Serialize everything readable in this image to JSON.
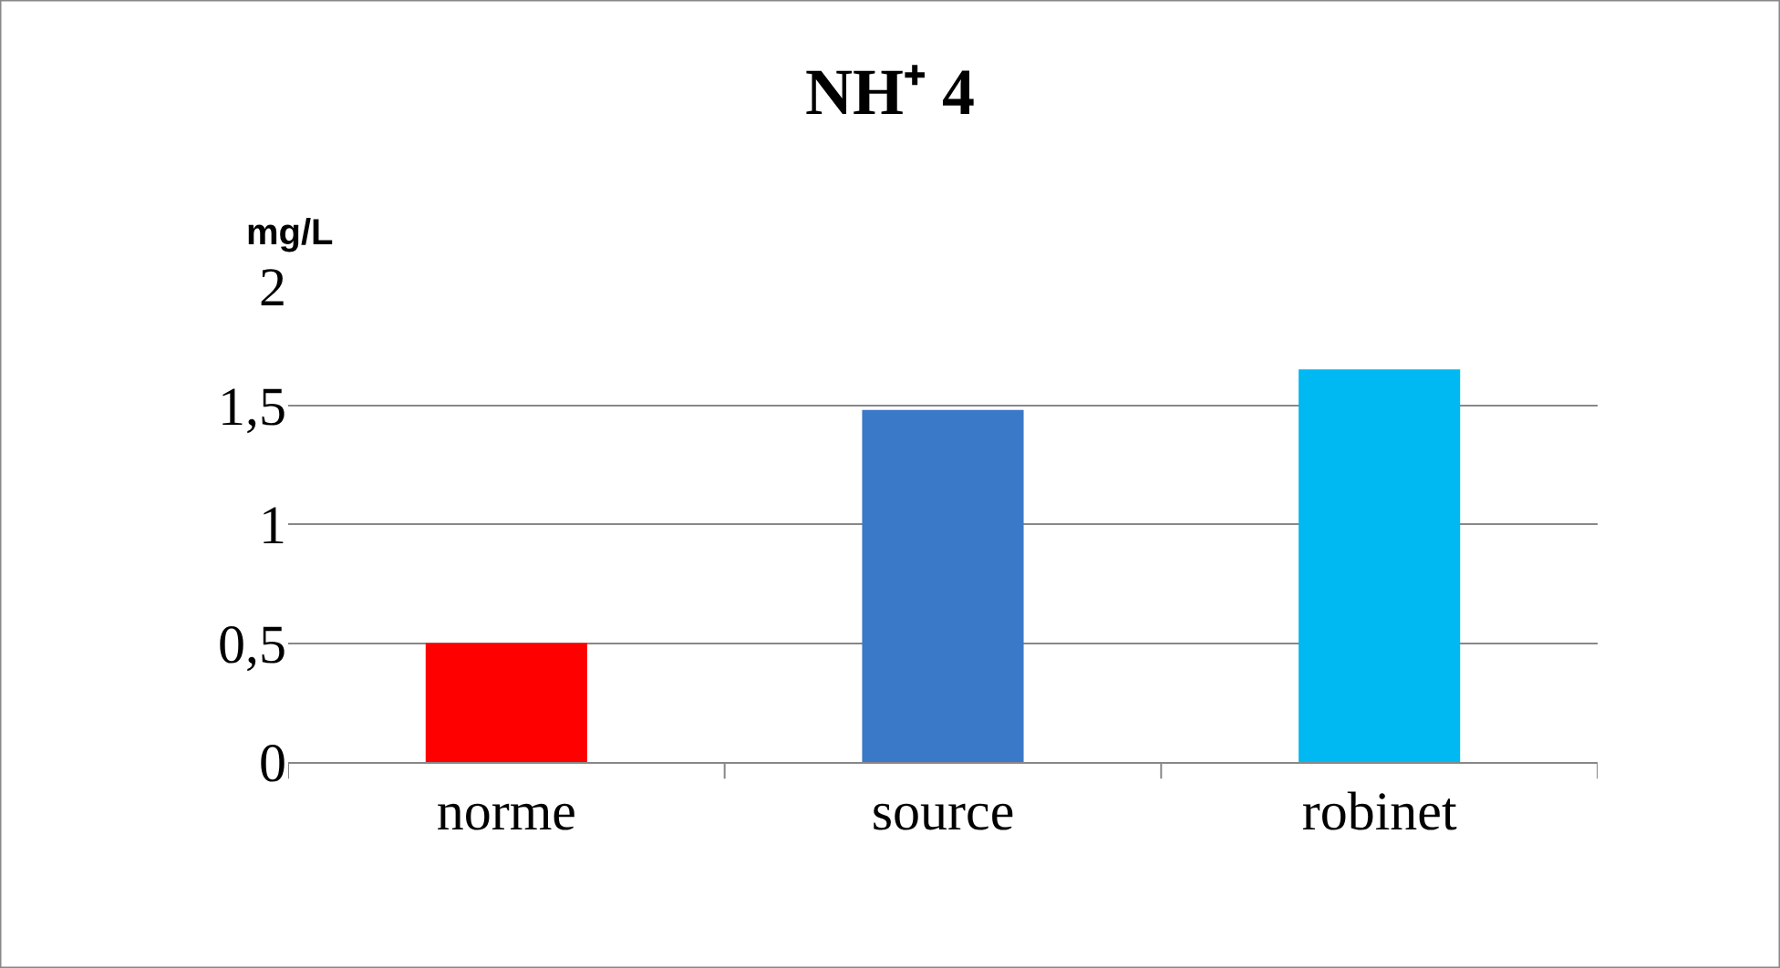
{
  "chart_data": {
    "type": "bar",
    "title": "NH⁺ 4",
    "ylabel": "mg/L",
    "categories": [
      "norme",
      "source",
      "robinet"
    ],
    "values": [
      0.5,
      1.48,
      1.65
    ],
    "colors": [
      "#ff0000",
      "#3a78c8",
      "#00b8f2"
    ],
    "ylim": [
      0,
      2
    ],
    "yticks": [
      0,
      {
        "value": 0.5,
        "label": "0,5"
      },
      1,
      {
        "value": 1.5,
        "label": "1,5"
      },
      2
    ],
    "grid": "y"
  }
}
